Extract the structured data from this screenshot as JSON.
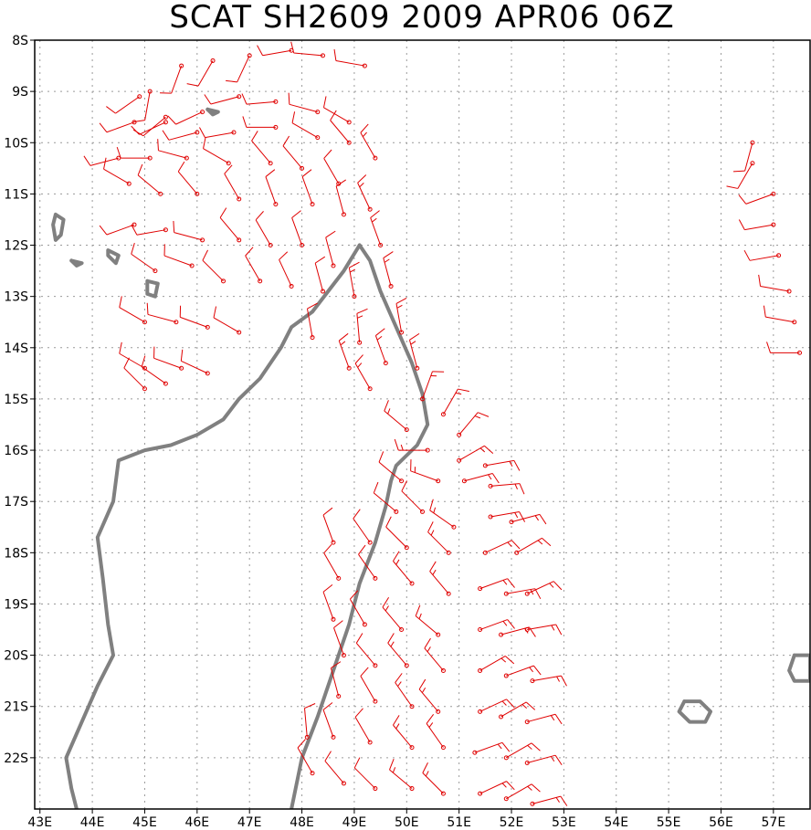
{
  "title": "SCAT SH2609 2009 APR06 06Z",
  "colors": {
    "barb": "#e00000",
    "coast": "#808080",
    "frame": "#000000",
    "grid": "#9a9a9a",
    "background": "#ffffff"
  },
  "axes": {
    "lon_range": [
      42.9,
      57.7
    ],
    "lat_range": [
      -23.0,
      -8.0
    ],
    "lon_ticks": [
      "43E",
      "44E",
      "45E",
      "46E",
      "47E",
      "48E",
      "49E",
      "50E",
      "51E",
      "52E",
      "53E",
      "54E",
      "55E",
      "56E",
      "57E"
    ],
    "lat_ticks": [
      "8S",
      "9S",
      "10S",
      "11S",
      "12S",
      "13S",
      "14S",
      "15S",
      "16S",
      "17S",
      "18S",
      "19S",
      "20S",
      "21S",
      "22S"
    ],
    "grid": "dotted"
  },
  "map_data": {
    "type": "wind-barbs",
    "coastlines": [
      {
        "name": "madagascar-coast",
        "points": [
          [
            49.1,
            -12.0
          ],
          [
            49.3,
            -12.3
          ],
          [
            49.5,
            -12.9
          ],
          [
            49.8,
            -13.6
          ],
          [
            50.1,
            -14.3
          ],
          [
            50.3,
            -14.9
          ],
          [
            50.4,
            -15.5
          ],
          [
            50.2,
            -15.9
          ],
          [
            49.8,
            -16.3
          ],
          [
            49.7,
            -16.6
          ],
          [
            49.6,
            -17.1
          ],
          [
            49.4,
            -17.8
          ],
          [
            49.1,
            -18.6
          ],
          [
            48.9,
            -19.4
          ],
          [
            48.6,
            -20.3
          ],
          [
            48.3,
            -21.2
          ],
          [
            48.0,
            -22.0
          ],
          [
            47.8,
            -23.0
          ]
        ]
      },
      {
        "name": "madagascar-west-coast",
        "points": [
          [
            43.7,
            -23.0
          ],
          [
            43.6,
            -22.6
          ],
          [
            43.5,
            -22.0
          ],
          [
            43.8,
            -21.3
          ],
          [
            44.1,
            -20.6
          ],
          [
            44.4,
            -20.0
          ],
          [
            44.3,
            -19.4
          ],
          [
            44.2,
            -18.5
          ],
          [
            44.1,
            -17.7
          ],
          [
            44.4,
            -17.0
          ],
          [
            44.5,
            -16.2
          ],
          [
            45.0,
            -16.0
          ],
          [
            45.5,
            -15.9
          ],
          [
            46.0,
            -15.7
          ],
          [
            46.5,
            -15.4
          ],
          [
            46.8,
            -15.0
          ],
          [
            47.2,
            -14.6
          ],
          [
            47.6,
            -14.0
          ],
          [
            47.8,
            -13.6
          ],
          [
            48.2,
            -13.3
          ],
          [
            48.5,
            -12.9
          ],
          [
            48.8,
            -12.5
          ],
          [
            49.1,
            -12.0
          ]
        ]
      },
      {
        "name": "comoros-grande",
        "points": [
          [
            43.3,
            -11.4
          ],
          [
            43.45,
            -11.5
          ],
          [
            43.4,
            -11.8
          ],
          [
            43.3,
            -11.9
          ],
          [
            43.25,
            -11.6
          ],
          [
            43.3,
            -11.4
          ]
        ]
      },
      {
        "name": "comoros-moheli",
        "points": [
          [
            43.6,
            -12.3
          ],
          [
            43.8,
            -12.35
          ],
          [
            43.7,
            -12.4
          ],
          [
            43.6,
            -12.3
          ]
        ]
      },
      {
        "name": "comoros-anjouan",
        "points": [
          [
            44.3,
            -12.1
          ],
          [
            44.5,
            -12.2
          ],
          [
            44.45,
            -12.35
          ],
          [
            44.3,
            -12.2
          ],
          [
            44.3,
            -12.1
          ]
        ]
      },
      {
        "name": "mayotte",
        "points": [
          [
            45.05,
            -12.7
          ],
          [
            45.25,
            -12.75
          ],
          [
            45.2,
            -13.0
          ],
          [
            45.05,
            -12.95
          ],
          [
            45.05,
            -12.7
          ]
        ]
      },
      {
        "name": "glorieuses",
        "points": [
          [
            46.2,
            -9.35
          ],
          [
            46.4,
            -9.4
          ],
          [
            46.3,
            -9.45
          ],
          [
            46.2,
            -9.35
          ]
        ]
      },
      {
        "name": "reunion",
        "points": [
          [
            55.3,
            -20.9
          ],
          [
            55.6,
            -20.9
          ],
          [
            55.8,
            -21.1
          ],
          [
            55.7,
            -21.3
          ],
          [
            55.4,
            -21.3
          ],
          [
            55.2,
            -21.1
          ],
          [
            55.3,
            -20.9
          ]
        ]
      },
      {
        "name": "mauritius",
        "points": [
          [
            57.4,
            -20.0
          ],
          [
            57.7,
            -20.0
          ],
          [
            57.7,
            -20.5
          ],
          [
            57.4,
            -20.5
          ],
          [
            57.3,
            -20.3
          ],
          [
            57.4,
            -20.0
          ]
        ]
      }
    ],
    "barbs": [
      [
        45.1,
        -9.0,
        190,
        12
      ],
      [
        45.7,
        -8.5,
        200,
        13
      ],
      [
        46.3,
        -8.4,
        210,
        12
      ],
      [
        47.0,
        -8.3,
        205,
        12
      ],
      [
        47.8,
        -8.2,
        260,
        12
      ],
      [
        48.4,
        -8.3,
        275,
        12
      ],
      [
        49.2,
        -8.5,
        280,
        13
      ],
      [
        44.9,
        -9.1,
        235,
        11
      ],
      [
        45.4,
        -9.5,
        230,
        11
      ],
      [
        46.1,
        -9.4,
        245,
        12
      ],
      [
        46.8,
        -9.1,
        255,
        12
      ],
      [
        47.5,
        -9.2,
        265,
        12
      ],
      [
        48.3,
        -9.4,
        285,
        12
      ],
      [
        48.9,
        -9.6,
        300,
        14
      ],
      [
        44.8,
        -9.6,
        250,
        11
      ],
      [
        45.4,
        -9.6,
        245,
        12
      ],
      [
        46.0,
        -9.8,
        255,
        11
      ],
      [
        46.7,
        -9.8,
        260,
        12
      ],
      [
        47.5,
        -9.7,
        270,
        12
      ],
      [
        48.3,
        -9.9,
        300,
        12
      ],
      [
        48.9,
        -10.0,
        320,
        14
      ],
      [
        44.5,
        -10.3,
        255,
        11
      ],
      [
        45.1,
        -10.3,
        270,
        11
      ],
      [
        45.8,
        -10.3,
        285,
        12
      ],
      [
        46.6,
        -10.4,
        300,
        12
      ],
      [
        47.4,
        -10.4,
        320,
        12
      ],
      [
        48.0,
        -10.5,
        320,
        12
      ],
      [
        48.7,
        -10.8,
        330,
        14
      ],
      [
        49.4,
        -10.3,
        330,
        15
      ],
      [
        44.7,
        -10.8,
        300,
        11
      ],
      [
        45.3,
        -11.0,
        310,
        12
      ],
      [
        46.0,
        -11.0,
        320,
        12
      ],
      [
        46.8,
        -11.1,
        330,
        12
      ],
      [
        47.5,
        -11.2,
        340,
        12
      ],
      [
        48.2,
        -11.2,
        340,
        13
      ],
      [
        48.8,
        -11.4,
        345,
        14
      ],
      [
        49.3,
        -11.3,
        335,
        15
      ],
      [
        44.8,
        -11.6,
        250,
        11
      ],
      [
        45.4,
        -11.7,
        260,
        11
      ],
      [
        46.1,
        -11.9,
        285,
        12
      ],
      [
        46.8,
        -11.9,
        320,
        12
      ],
      [
        47.4,
        -12.0,
        330,
        12
      ],
      [
        48.0,
        -12.0,
        340,
        13
      ],
      [
        48.6,
        -12.4,
        345,
        14
      ],
      [
        49.5,
        -12.0,
        340,
        15
      ],
      [
        45.2,
        -12.5,
        305,
        11
      ],
      [
        45.9,
        -12.4,
        290,
        12
      ],
      [
        46.5,
        -12.7,
        315,
        12
      ],
      [
        47.2,
        -12.7,
        330,
        12
      ],
      [
        47.8,
        -12.8,
        335,
        13
      ],
      [
        48.4,
        -12.9,
        345,
        14
      ],
      [
        49.0,
        -13.0,
        350,
        15
      ],
      [
        49.7,
        -12.8,
        345,
        15
      ],
      [
        45.0,
        -13.5,
        300,
        11
      ],
      [
        45.6,
        -13.5,
        285,
        11
      ],
      [
        46.2,
        -13.6,
        290,
        12
      ],
      [
        46.8,
        -13.7,
        300,
        12
      ],
      [
        48.2,
        -13.8,
        350,
        14
      ],
      [
        49.1,
        -13.9,
        355,
        15
      ],
      [
        49.9,
        -13.7,
        350,
        15
      ],
      [
        45.0,
        -14.4,
        300,
        11
      ],
      [
        45.7,
        -14.4,
        290,
        11
      ],
      [
        46.2,
        -14.5,
        295,
        12
      ],
      [
        48.9,
        -14.4,
        340,
        15
      ],
      [
        49.6,
        -14.3,
        340,
        15
      ],
      [
        50.2,
        -14.4,
        345,
        16
      ],
      [
        45.0,
        -14.8,
        315,
        11
      ],
      [
        45.4,
        -14.7,
        305,
        11
      ],
      [
        49.3,
        -14.8,
        330,
        15
      ],
      [
        50.3,
        -15.0,
        20,
        16
      ],
      [
        50.0,
        -15.6,
        310,
        15
      ],
      [
        50.7,
        -15.3,
        30,
        17
      ],
      [
        51.0,
        -15.7,
        40,
        17
      ],
      [
        50.4,
        -16.0,
        270,
        15
      ],
      [
        51.0,
        -16.2,
        60,
        17
      ],
      [
        51.5,
        -16.3,
        80,
        17
      ],
      [
        49.9,
        -16.6,
        310,
        14
      ],
      [
        50.6,
        -16.6,
        290,
        15
      ],
      [
        51.1,
        -16.6,
        75,
        17
      ],
      [
        51.6,
        -16.7,
        85,
        17
      ],
      [
        49.8,
        -17.2,
        310,
        14
      ],
      [
        50.3,
        -17.2,
        315,
        14
      ],
      [
        50.9,
        -17.5,
        305,
        16
      ],
      [
        51.6,
        -17.3,
        80,
        17
      ],
      [
        52.0,
        -17.4,
        75,
        17
      ],
      [
        48.6,
        -17.8,
        340,
        14
      ],
      [
        49.3,
        -17.8,
        325,
        14
      ],
      [
        50.0,
        -17.9,
        315,
        14
      ],
      [
        50.8,
        -18.0,
        315,
        16
      ],
      [
        51.5,
        -18.0,
        65,
        17
      ],
      [
        52.1,
        -18.0,
        60,
        17
      ],
      [
        48.7,
        -18.5,
        330,
        14
      ],
      [
        49.4,
        -18.5,
        325,
        14
      ],
      [
        50.1,
        -18.6,
        320,
        15
      ],
      [
        50.8,
        -18.8,
        320,
        16
      ],
      [
        51.4,
        -18.7,
        70,
        17
      ],
      [
        51.9,
        -18.8,
        80,
        17
      ],
      [
        52.3,
        -18.8,
        65,
        17
      ],
      [
        48.6,
        -19.3,
        340,
        14
      ],
      [
        49.2,
        -19.4,
        330,
        14
      ],
      [
        49.9,
        -19.5,
        320,
        15
      ],
      [
        50.6,
        -19.6,
        310,
        16
      ],
      [
        51.4,
        -19.5,
        70,
        17
      ],
      [
        51.8,
        -19.6,
        75,
        17
      ],
      [
        52.3,
        -19.5,
        80,
        17
      ],
      [
        48.8,
        -20.0,
        340,
        14
      ],
      [
        49.4,
        -20.2,
        320,
        14
      ],
      [
        50.0,
        -20.2,
        320,
        15
      ],
      [
        50.7,
        -20.3,
        320,
        16
      ],
      [
        51.4,
        -20.3,
        60,
        17
      ],
      [
        51.9,
        -20.4,
        70,
        17
      ],
      [
        52.4,
        -20.5,
        80,
        17
      ],
      [
        48.7,
        -20.8,
        345,
        14
      ],
      [
        49.4,
        -20.9,
        330,
        14
      ],
      [
        50.1,
        -21.0,
        325,
        15
      ],
      [
        50.6,
        -21.1,
        320,
        16
      ],
      [
        51.4,
        -21.1,
        65,
        17
      ],
      [
        51.8,
        -21.2,
        60,
        17
      ],
      [
        52.3,
        -21.3,
        75,
        17
      ],
      [
        48.1,
        -21.6,
        355,
        14
      ],
      [
        48.6,
        -21.6,
        340,
        14
      ],
      [
        49.3,
        -21.7,
        330,
        14
      ],
      [
        50.1,
        -21.8,
        320,
        15
      ],
      [
        50.7,
        -21.8,
        325,
        16
      ],
      [
        51.3,
        -21.9,
        70,
        17
      ],
      [
        51.9,
        -22.0,
        60,
        17
      ],
      [
        52.3,
        -22.1,
        75,
        17
      ],
      [
        48.2,
        -22.3,
        330,
        14
      ],
      [
        48.8,
        -22.5,
        320,
        14
      ],
      [
        49.4,
        -22.6,
        315,
        14
      ],
      [
        50.1,
        -22.6,
        310,
        15
      ],
      [
        50.7,
        -22.7,
        315,
        16
      ],
      [
        51.4,
        -22.7,
        65,
        17
      ],
      [
        51.9,
        -22.8,
        60,
        17
      ],
      [
        52.4,
        -22.9,
        75,
        17
      ],
      [
        56.6,
        -10.0,
        195,
        12
      ],
      [
        56.6,
        -10.4,
        210,
        12
      ],
      [
        57.0,
        -11.0,
        250,
        12
      ],
      [
        57.0,
        -11.6,
        260,
        12
      ],
      [
        57.1,
        -12.2,
        260,
        12
      ],
      [
        57.3,
        -12.9,
        280,
        12
      ],
      [
        57.4,
        -13.5,
        280,
        12
      ],
      [
        57.5,
        -14.1,
        270,
        12
      ]
    ]
  }
}
